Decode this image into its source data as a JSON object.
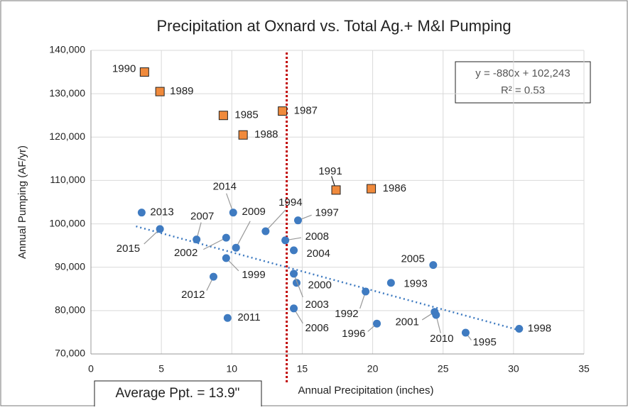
{
  "chart_data": {
    "type": "scatter",
    "title": "Precipitation at Oxnard vs. Total Ag.+ M&I Pumping",
    "x_label": "Annual Precipitation (inches)",
    "y_label": "Annual Pumping (AF/yr)",
    "xlim": [
      0,
      35
    ],
    "xticks": [
      0,
      5,
      10,
      15,
      20,
      25,
      30,
      35
    ],
    "ylim": [
      70000,
      140000
    ],
    "yticks": [
      {
        "value": 70000,
        "label": "70,000"
      },
      {
        "value": 80000,
        "label": "80,000"
      },
      {
        "value": 90000,
        "label": "90,000"
      },
      {
        "value": 100000,
        "label": "100,000"
      },
      {
        "value": 110000,
        "label": "110,000"
      },
      {
        "value": 120000,
        "label": "120,000"
      },
      {
        "value": 130000,
        "label": "130,000"
      },
      {
        "value": 140000,
        "label": "140,000"
      }
    ],
    "series": [
      {
        "color": "#f08a3c",
        "marker": "square",
        "point_labels": [
          "1990",
          "1989",
          "1985",
          "1987",
          "1988",
          "1991",
          "1986"
        ],
        "x": [
          3.8,
          4.9,
          9.4,
          13.6,
          10.8,
          17.4,
          19.9
        ],
        "values": [
          135000,
          130500,
          125000,
          126000,
          120500,
          107800,
          108100
        ]
      },
      {
        "color": "#3f7bc1",
        "marker": "circle",
        "point_labels": [
          "2013",
          "2015",
          "2007",
          "2002",
          "2014",
          "2009",
          "1999",
          "2012",
          "2011",
          "1994",
          "2008",
          "1997",
          "2004",
          "2000",
          "2003",
          "2006",
          "1992",
          "1993",
          "2005",
          "1996",
          "2001",
          "2010",
          "1995",
          "1998"
        ],
        "x": [
          3.6,
          4.9,
          7.5,
          9.6,
          10.1,
          10.3,
          9.6,
          8.7,
          9.7,
          12.4,
          13.8,
          14.7,
          14.4,
          14.6,
          14.4,
          14.4,
          19.5,
          21.3,
          24.3,
          20.3,
          24.4,
          24.5,
          26.6,
          30.4
        ],
        "values": [
          102600,
          98800,
          96400,
          96800,
          102600,
          94500,
          92100,
          87800,
          78300,
          98300,
          96200,
          100800,
          93900,
          86400,
          88500,
          80500,
          84400,
          86400,
          90500,
          77000,
          79700,
          79000,
          74900,
          75800
        ]
      }
    ],
    "trendline": {
      "slope": -880,
      "intercept": 102243,
      "x_range": [
        3.2,
        30.4
      ],
      "color": "#3f7bc1"
    },
    "equation": "y = -880x + 102,243",
    "r_squared": "R² = 0.53",
    "average_x": 13.9,
    "average_label": "Average Ppt. = 13.9\"",
    "average_color": "#c00000"
  }
}
